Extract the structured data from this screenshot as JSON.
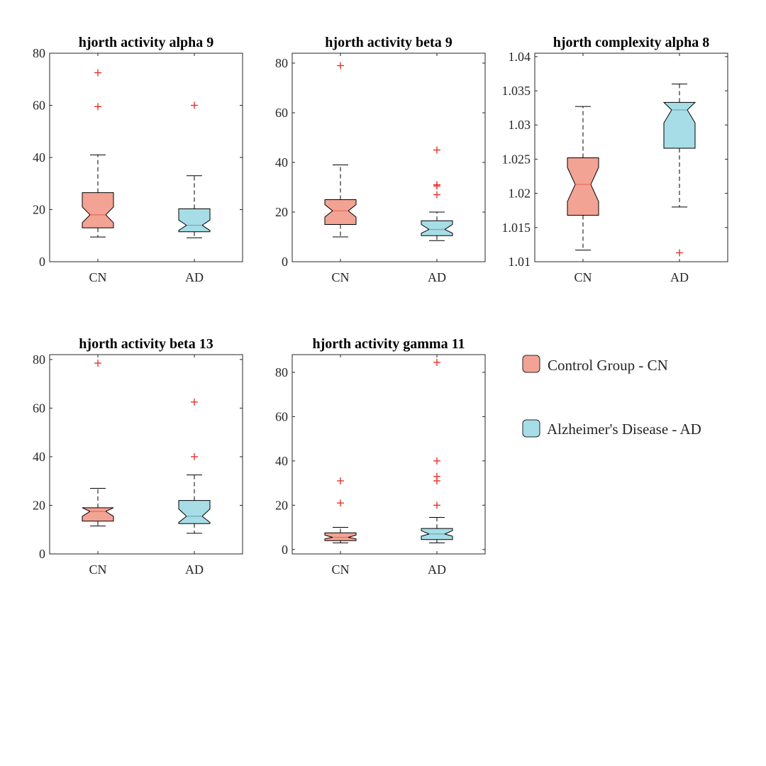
{
  "colors": {
    "cn_fill": "#F2A394",
    "ad_fill": "#A6DDE6",
    "outlier": "#E8261E",
    "median_cn": "#E86A5A",
    "median_ad": "#6FA9B5",
    "axis": "#262626"
  },
  "legend": {
    "items": [
      {
        "label": "Control Group - CN",
        "group": "cn"
      },
      {
        "label": "Alzheimer's Disease - AD",
        "group": "ad"
      }
    ]
  },
  "chart_data": [
    {
      "type": "box",
      "title": "hjorth activity alpha 9",
      "categories": [
        "CN",
        "AD"
      ],
      "ylim": [
        0,
        80
      ],
      "yticks": [
        0,
        20,
        40,
        60,
        80
      ],
      "ytick_labels": [
        "0",
        "20",
        "40",
        "60",
        "80"
      ],
      "boxes": [
        {
          "group": "cn",
          "whisker_low": 9.5,
          "q1": 13,
          "median": 18,
          "q3": 26.5,
          "whisker_high": 41,
          "notch_low": 15,
          "notch_high": 21,
          "outliers": [
            59.5,
            72.5
          ]
        },
        {
          "group": "ad",
          "whisker_low": 9.2,
          "q1": 11.5,
          "median": 14,
          "q3": 20.3,
          "whisker_high": 33,
          "notch_low": 12,
          "notch_high": 16,
          "outliers": [
            60
          ]
        }
      ]
    },
    {
      "type": "box",
      "title": "hjorth activity beta 9",
      "categories": [
        "CN",
        "AD"
      ],
      "ylim": [
        0,
        84
      ],
      "yticks": [
        0,
        20,
        40,
        60,
        80
      ],
      "ytick_labels": [
        "0",
        "20",
        "40",
        "60",
        "80"
      ],
      "boxes": [
        {
          "group": "cn",
          "whisker_low": 10,
          "q1": 15,
          "median": 20.5,
          "q3": 25,
          "whisker_high": 39,
          "notch_low": 18,
          "notch_high": 23,
          "outliers": [
            79
          ]
        },
        {
          "group": "ad",
          "whisker_low": 8.5,
          "q1": 10.5,
          "median": 13,
          "q3": 16.5,
          "whisker_high": 20,
          "notch_low": 11.5,
          "notch_high": 15,
          "outliers": [
            27,
            30.5,
            31,
            45
          ]
        }
      ]
    },
    {
      "type": "box",
      "title": "hjorth complexity alpha 8",
      "categories": [
        "CN",
        "AD"
      ],
      "ylim": [
        1.01,
        1.0405
      ],
      "yticks": [
        1.01,
        1.015,
        1.02,
        1.025,
        1.03,
        1.035,
        1.04
      ],
      "ytick_labels": [
        "1.01",
        "1.015",
        "1.02",
        "1.025",
        "1.03",
        "1.035",
        "1.04"
      ],
      "boxes": [
        {
          "group": "cn",
          "whisker_low": 1.0117,
          "q1": 1.0168,
          "median": 1.0213,
          "q3": 1.0252,
          "whisker_high": 1.0327,
          "notch_low": 1.0188,
          "notch_high": 1.0238,
          "outliers": []
        },
        {
          "group": "ad",
          "whisker_low": 1.018,
          "q1": 1.0266,
          "median": 1.0322,
          "q3": 1.0333,
          "whisker_high": 1.036,
          "notch_low": 1.0303,
          "notch_high": 1.0338,
          "outliers": [
            1.0113
          ]
        }
      ]
    },
    {
      "type": "box",
      "title": "hjorth activity beta 13",
      "categories": [
        "CN",
        "AD"
      ],
      "ylim": [
        0,
        82
      ],
      "yticks": [
        0,
        20,
        40,
        60,
        80
      ],
      "ytick_labels": [
        "0",
        "20",
        "40",
        "60",
        "80"
      ],
      "boxes": [
        {
          "group": "cn",
          "whisker_low": 11.5,
          "q1": 13.5,
          "median": 17.5,
          "q3": 19,
          "whisker_high": 27,
          "notch_low": 15.5,
          "notch_high": 19,
          "outliers": [
            78.5
          ]
        },
        {
          "group": "ad",
          "whisker_low": 8.5,
          "q1": 12.5,
          "median": 15.5,
          "q3": 22,
          "whisker_high": 32.5,
          "notch_low": 13,
          "notch_high": 18.5,
          "outliers": [
            40,
            62.5
          ]
        }
      ]
    },
    {
      "type": "box",
      "title": "hjorth activity gamma 11",
      "categories": [
        "CN",
        "AD"
      ],
      "ylim": [
        -2,
        88
      ],
      "yticks": [
        0,
        20,
        40,
        60,
        80
      ],
      "ytick_labels": [
        "0",
        "20",
        "40",
        "60",
        "80"
      ],
      "boxes": [
        {
          "group": "cn",
          "whisker_low": 3,
          "q1": 4,
          "median": 5.5,
          "q3": 7.5,
          "whisker_high": 10,
          "notch_low": 4.8,
          "notch_high": 6.5,
          "outliers": [
            21,
            31
          ]
        },
        {
          "group": "ad",
          "whisker_low": 3,
          "q1": 4.5,
          "median": 7,
          "q3": 9.5,
          "whisker_high": 14.5,
          "notch_low": 6,
          "notch_high": 8.5,
          "outliers": [
            20,
            31,
            33,
            40,
            84.5
          ]
        }
      ]
    }
  ]
}
